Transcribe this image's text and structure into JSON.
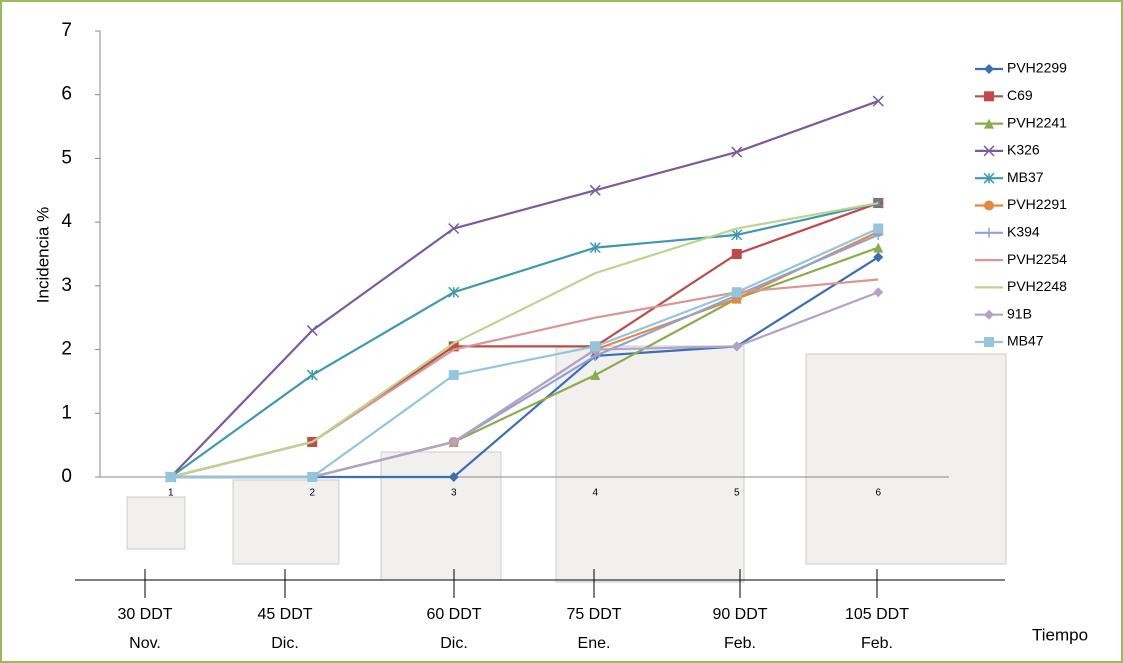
{
  "chart_data": {
    "type": "line",
    "y_label": "Incidencia %",
    "categories": [
      "1",
      "2",
      "3",
      "4",
      "5",
      "6"
    ],
    "ylim": [
      0,
      7
    ],
    "yticks": [
      0,
      1,
      2,
      3,
      4,
      5,
      6,
      7
    ],
    "grid": false,
    "legend": "right",
    "series": [
      {
        "name": "PVH2299",
        "color": "#3a6fb5",
        "marker": "diamond",
        "values": [
          0,
          0,
          0,
          1.9,
          2.05,
          3.45
        ]
      },
      {
        "name": "C69",
        "color": "#be4b48",
        "marker": "square",
        "values": [
          0,
          0.55,
          2.05,
          2.05,
          3.5,
          4.3
        ]
      },
      {
        "name": "PVH2241",
        "color": "#8aac4a",
        "marker": "triangle",
        "values": [
          0,
          0,
          0.55,
          1.6,
          2.8,
          3.6
        ]
      },
      {
        "name": "K326",
        "color": "#7a5c9c",
        "marker": "x",
        "values": [
          0,
          2.3,
          3.9,
          4.5,
          5.1,
          5.9
        ]
      },
      {
        "name": "MB37",
        "color": "#3d9aae",
        "marker": "star",
        "values": [
          0,
          1.6,
          2.9,
          3.6,
          3.8,
          4.3
        ]
      },
      {
        "name": "PVH2291",
        "color": "#e8873f",
        "marker": "circle",
        "values": [
          0,
          0,
          0.55,
          2.0,
          2.8,
          3.85
        ]
      },
      {
        "name": "K394",
        "color": "#8da3d1",
        "marker": "plus",
        "values": [
          0,
          0,
          0.55,
          1.9,
          2.85,
          3.8
        ]
      },
      {
        "name": "PVH2254",
        "color": "#d99694",
        "marker": "none",
        "values": [
          0,
          0.55,
          2.0,
          2.5,
          2.9,
          3.1
        ]
      },
      {
        "name": "PVH2248",
        "color": "#bcd48f",
        "marker": "none",
        "values": [
          0,
          0.55,
          2.1,
          3.2,
          3.9,
          4.3
        ]
      },
      {
        "name": "91B",
        "color": "#b3a2c7",
        "marker": "diamond",
        "values": [
          0,
          0,
          0.55,
          2.0,
          2.05,
          2.9
        ]
      },
      {
        "name": "MB47",
        "color": "#93c6dd",
        "marker": "square",
        "values": [
          0,
          0,
          1.6,
          2.05,
          2.9,
          3.9
        ]
      }
    ],
    "time_axis": {
      "title": "Tiempo",
      "labels": [
        [
          "30 DDT",
          "Nov."
        ],
        [
          "45 DDT",
          "Dic."
        ],
        [
          "60 DDT",
          "Dic."
        ],
        [
          "75 DDT",
          "Ene."
        ],
        [
          "90 DDT",
          "Feb."
        ],
        [
          "105 DDT",
          "Feb."
        ]
      ]
    }
  }
}
